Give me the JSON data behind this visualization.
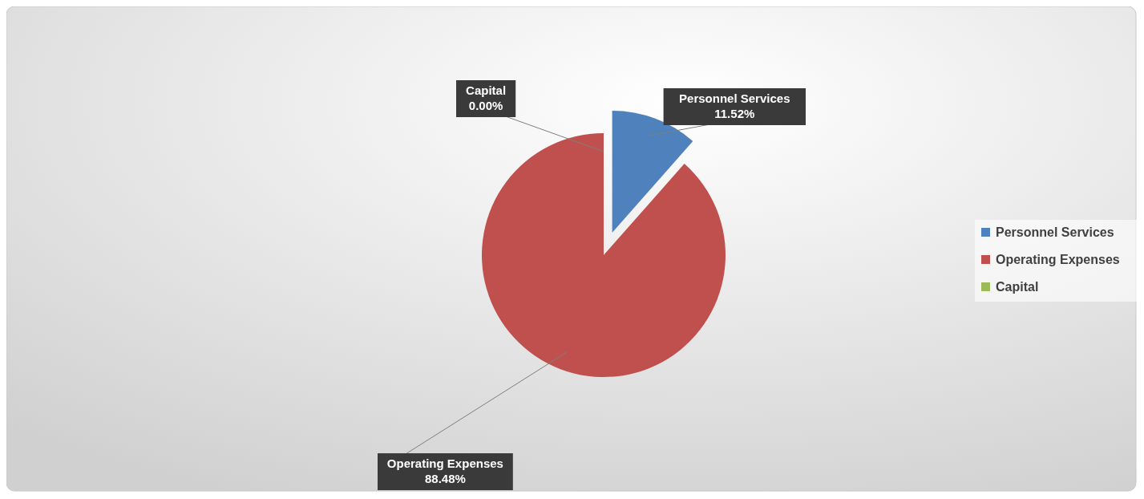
{
  "chart_data": {
    "type": "pie",
    "categories": [
      "Personnel  Services",
      "Operating Expenses",
      "Capital"
    ],
    "values": [
      11.52,
      88.48,
      0
    ],
    "value_labels": [
      "11.52%",
      "88.48%",
      "0.00%"
    ],
    "colors": [
      "#4f81bd",
      "#c0504d",
      "#9bbb59"
    ],
    "legend": "right"
  }
}
